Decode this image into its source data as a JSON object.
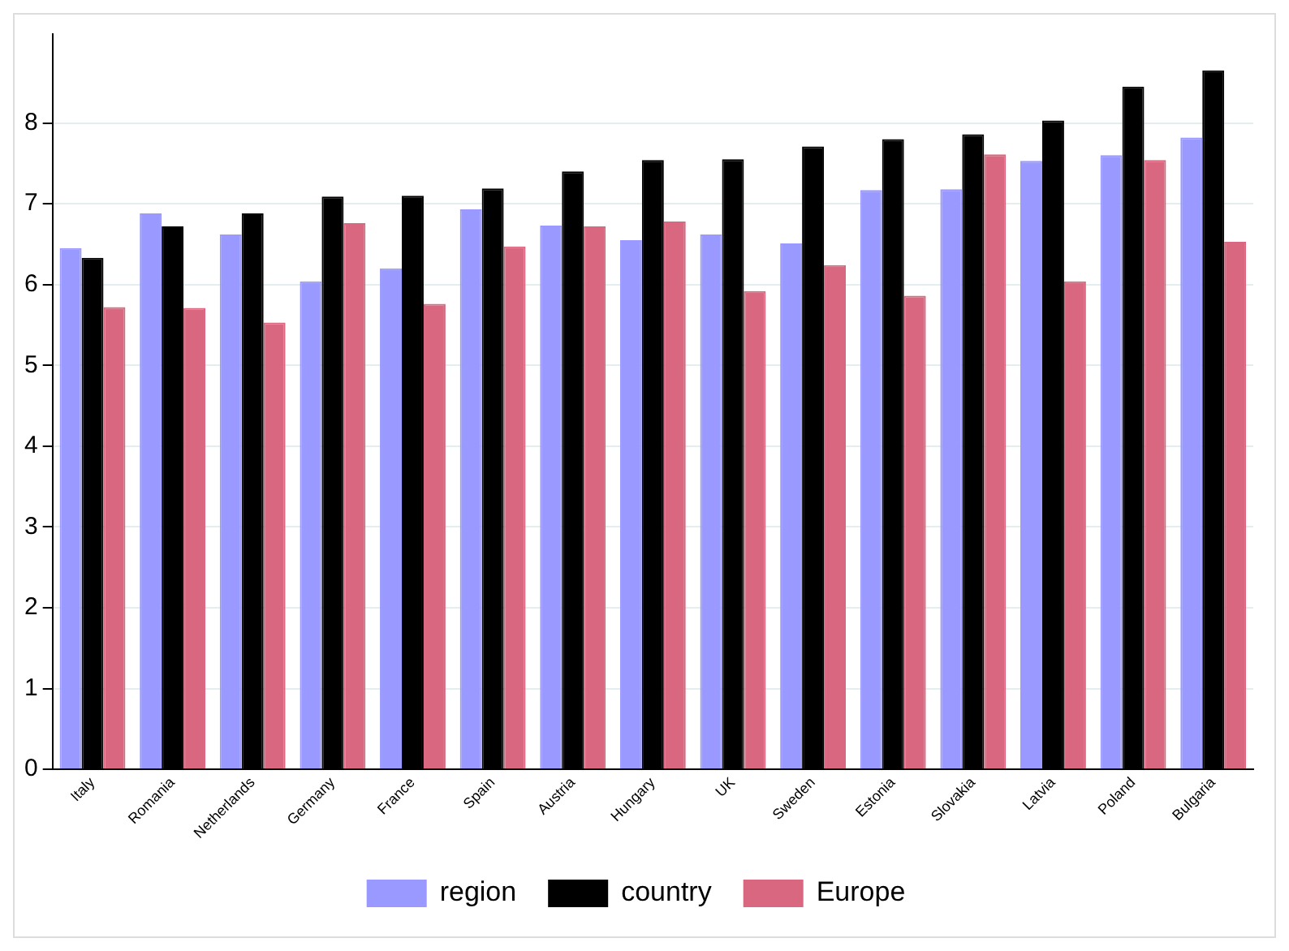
{
  "chart_data": {
    "type": "bar",
    "categories": [
      "Italy",
      "Romania",
      "Netherlands",
      "Germany",
      "France",
      "Spain",
      "Austria",
      "Hungary",
      "UK",
      "Sweden",
      "Estonia",
      "Slovakia",
      "Latvia",
      "Poland",
      "Bulgaria"
    ],
    "series": [
      {
        "name": "region",
        "color": "#9999ff",
        "values": [
          6.45,
          6.88,
          6.62,
          6.04,
          6.2,
          6.93,
          6.73,
          6.55,
          6.62,
          6.51,
          7.17,
          7.18,
          7.53,
          7.6,
          7.82
        ]
      },
      {
        "name": "country",
        "color": "#000000",
        "values": [
          6.33,
          6.72,
          6.88,
          7.09,
          7.1,
          7.19,
          7.4,
          7.54,
          7.55,
          7.71,
          7.8,
          7.86,
          8.03,
          8.45,
          8.65
        ]
      },
      {
        "name": "Europe",
        "color": "#d9677f",
        "values": [
          5.72,
          5.71,
          5.53,
          6.76,
          5.76,
          6.47,
          6.72,
          6.78,
          5.92,
          6.24,
          5.86,
          7.61,
          6.04,
          7.54,
          6.53
        ]
      }
    ],
    "ylim": [
      0,
      9.1
    ],
    "yticks": [
      0,
      1,
      2,
      3,
      4,
      5,
      6,
      7,
      8
    ],
    "grid": "y",
    "legend": "bottom"
  }
}
